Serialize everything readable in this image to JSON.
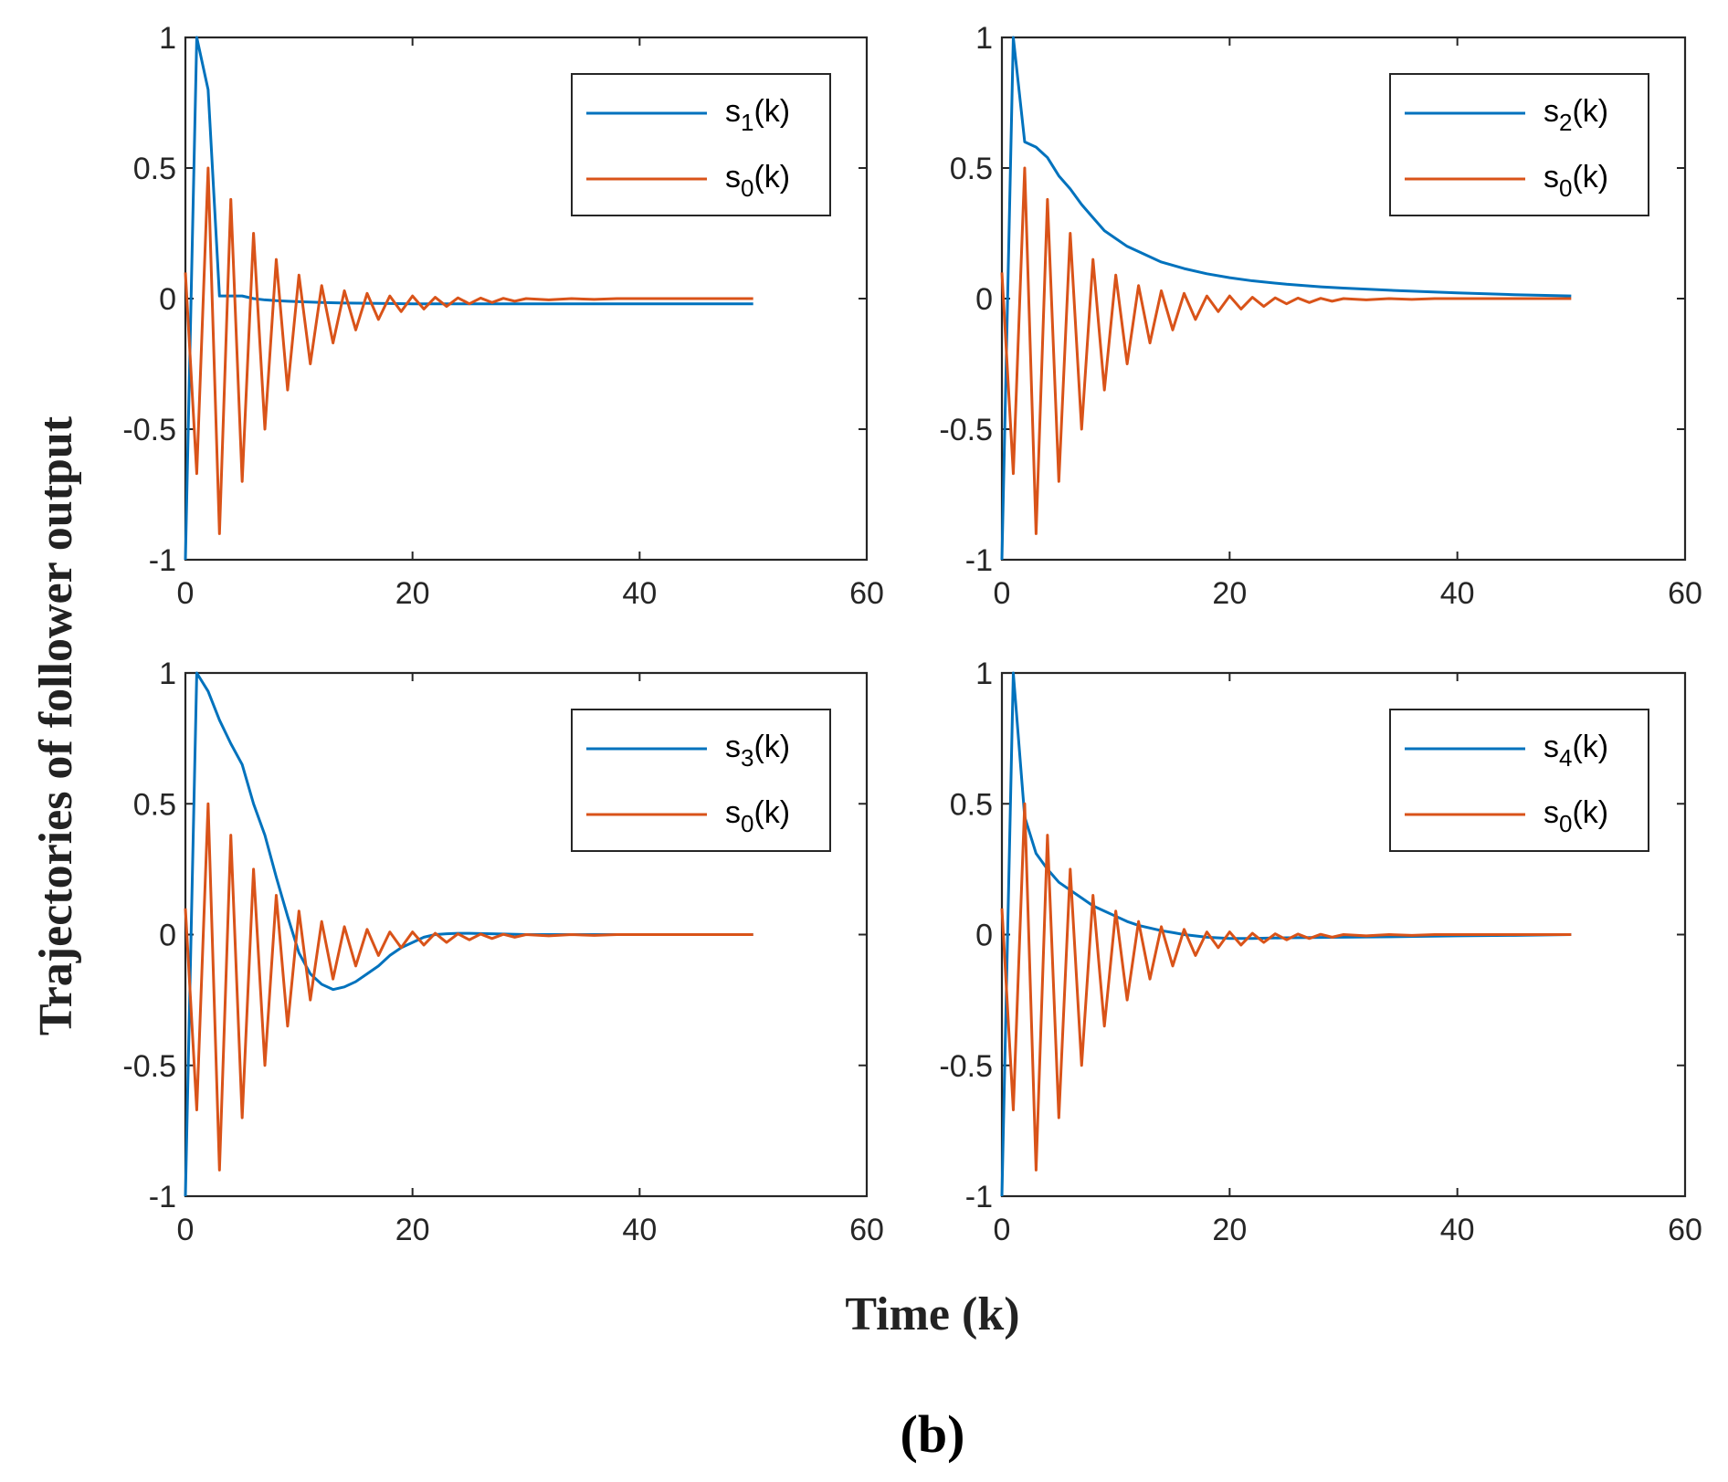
{
  "figure": {
    "ylabel": "Trajectories of follower output",
    "xlabel": "Time (k)",
    "panel_label": "(b)",
    "colors": {
      "s_follower": "#0072BD",
      "s_leader": "#D95319",
      "axes": "#262626"
    }
  },
  "chart_data": [
    {
      "type": "line",
      "xlim": [
        0,
        60
      ],
      "ylim": [
        -1,
        1
      ],
      "xticks": [
        0,
        20,
        40,
        60
      ],
      "xtick_labels": [
        "0",
        "20",
        "40",
        "60"
      ],
      "yticks": [
        -1,
        -0.5,
        0,
        0.5,
        1
      ],
      "ytick_labels": [
        "-1",
        "-0.5",
        "0",
        "0.5",
        "1"
      ],
      "legend_location": "top-right",
      "series": [
        {
          "name": "s1(k)",
          "label_base": "s",
          "label_sub": "1",
          "label_tail": "(k)",
          "color": "#0072BD",
          "x": [
            0,
            1,
            2,
            3,
            4,
            5,
            6,
            7,
            8,
            9,
            10,
            12,
            14,
            16,
            18,
            20,
            25,
            30,
            35,
            40,
            45,
            50
          ],
          "y": [
            -1,
            1,
            0.8,
            0.01,
            0.01,
            0.01,
            0.0,
            -0.005,
            -0.008,
            -0.01,
            -0.012,
            -0.015,
            -0.017,
            -0.018,
            -0.019,
            -0.02,
            -0.02,
            -0.02,
            -0.02,
            -0.02,
            -0.02,
            -0.02
          ]
        },
        {
          "name": "s0(k)",
          "label_base": "s",
          "label_sub": "0",
          "label_tail": "(k)",
          "color": "#D95319",
          "x": [
            0,
            1,
            2,
            3,
            4,
            5,
            6,
            7,
            8,
            9,
            10,
            11,
            12,
            13,
            14,
            15,
            16,
            17,
            18,
            19,
            20,
            21,
            22,
            23,
            24,
            25,
            26,
            27,
            28,
            29,
            30,
            32,
            34,
            36,
            38,
            40,
            45,
            50
          ],
          "y": [
            0.1,
            -0.67,
            0.5,
            -0.9,
            0.38,
            -0.7,
            0.25,
            -0.5,
            0.15,
            -0.35,
            0.09,
            -0.25,
            0.05,
            -0.17,
            0.03,
            -0.12,
            0.02,
            -0.08,
            0.01,
            -0.05,
            0.01,
            -0.04,
            0.005,
            -0.03,
            0.003,
            -0.02,
            0.002,
            -0.015,
            0.001,
            -0.01,
            0.0,
            -0.005,
            0.0,
            -0.003,
            0.0,
            0.0,
            0.0,
            0.0
          ]
        }
      ]
    },
    {
      "type": "line",
      "xlim": [
        0,
        60
      ],
      "ylim": [
        -1,
        1
      ],
      "xticks": [
        0,
        20,
        40,
        60
      ],
      "xtick_labels": [
        "0",
        "20",
        "40",
        "60"
      ],
      "yticks": [
        -1,
        -0.5,
        0,
        0.5,
        1
      ],
      "ytick_labels": [
        "-1",
        "-0.5",
        "0",
        "0.5",
        "1"
      ],
      "legend_location": "top-right",
      "series": [
        {
          "name": "s2(k)",
          "label_base": "s",
          "label_sub": "2",
          "label_tail": "(k)",
          "color": "#0072BD",
          "x": [
            0,
            1,
            2,
            3,
            4,
            5,
            6,
            7,
            8,
            9,
            10,
            11,
            12,
            14,
            16,
            18,
            20,
            22,
            25,
            28,
            30,
            35,
            40,
            45,
            50
          ],
          "y": [
            -1,
            1,
            0.6,
            0.58,
            0.54,
            0.47,
            0.42,
            0.36,
            0.31,
            0.26,
            0.23,
            0.2,
            0.18,
            0.14,
            0.115,
            0.095,
            0.08,
            0.068,
            0.055,
            0.045,
            0.04,
            0.03,
            0.022,
            0.015,
            0.01
          ]
        },
        {
          "name": "s0(k)",
          "label_base": "s",
          "label_sub": "0",
          "label_tail": "(k)",
          "color": "#D95319",
          "x": [
            0,
            1,
            2,
            3,
            4,
            5,
            6,
            7,
            8,
            9,
            10,
            11,
            12,
            13,
            14,
            15,
            16,
            17,
            18,
            19,
            20,
            21,
            22,
            23,
            24,
            25,
            26,
            27,
            28,
            29,
            30,
            32,
            34,
            36,
            38,
            40,
            45,
            50
          ],
          "y": [
            0.1,
            -0.67,
            0.5,
            -0.9,
            0.38,
            -0.7,
            0.25,
            -0.5,
            0.15,
            -0.35,
            0.09,
            -0.25,
            0.05,
            -0.17,
            0.03,
            -0.12,
            0.02,
            -0.08,
            0.01,
            -0.05,
            0.01,
            -0.04,
            0.005,
            -0.03,
            0.003,
            -0.02,
            0.002,
            -0.015,
            0.001,
            -0.01,
            0.0,
            -0.005,
            0.0,
            -0.003,
            0.0,
            0.0,
            0.0,
            0.0
          ]
        }
      ]
    },
    {
      "type": "line",
      "xlim": [
        0,
        60
      ],
      "ylim": [
        -1,
        1
      ],
      "xticks": [
        0,
        20,
        40,
        60
      ],
      "xtick_labels": [
        "0",
        "20",
        "40",
        "60"
      ],
      "yticks": [
        -1,
        -0.5,
        0,
        0.5,
        1
      ],
      "ytick_labels": [
        "-1",
        "-0.5",
        "0",
        "0.5",
        "1"
      ],
      "legend_location": "top-right",
      "series": [
        {
          "name": "s3(k)",
          "label_base": "s",
          "label_sub": "3",
          "label_tail": "(k)",
          "color": "#0072BD",
          "x": [
            0,
            1,
            2,
            3,
            4,
            5,
            6,
            7,
            8,
            9,
            10,
            11,
            12,
            13,
            14,
            15,
            16,
            17,
            18,
            19,
            20,
            21,
            22,
            23,
            24,
            25,
            26,
            28,
            30,
            35,
            40,
            45,
            50
          ],
          "y": [
            -1,
            1,
            0.93,
            0.82,
            0.73,
            0.65,
            0.5,
            0.38,
            0.22,
            0.07,
            -0.07,
            -0.15,
            -0.19,
            -0.21,
            -0.2,
            -0.18,
            -0.15,
            -0.12,
            -0.08,
            -0.05,
            -0.03,
            -0.01,
            0.0,
            0.003,
            0.005,
            0.005,
            0.004,
            0.002,
            0.0,
            0.0,
            0.0,
            0.0,
            0.0
          ]
        },
        {
          "name": "s0(k)",
          "label_base": "s",
          "label_sub": "0",
          "label_tail": "(k)",
          "color": "#D95319",
          "x": [
            0,
            1,
            2,
            3,
            4,
            5,
            6,
            7,
            8,
            9,
            10,
            11,
            12,
            13,
            14,
            15,
            16,
            17,
            18,
            19,
            20,
            21,
            22,
            23,
            24,
            25,
            26,
            27,
            28,
            29,
            30,
            32,
            34,
            36,
            38,
            40,
            45,
            50
          ],
          "y": [
            0.1,
            -0.67,
            0.5,
            -0.9,
            0.38,
            -0.7,
            0.25,
            -0.5,
            0.15,
            -0.35,
            0.09,
            -0.25,
            0.05,
            -0.17,
            0.03,
            -0.12,
            0.02,
            -0.08,
            0.01,
            -0.05,
            0.01,
            -0.04,
            0.005,
            -0.03,
            0.003,
            -0.02,
            0.002,
            -0.015,
            0.001,
            -0.01,
            0.0,
            -0.005,
            0.0,
            -0.003,
            0.0,
            0.0,
            0.0,
            0.0
          ]
        }
      ]
    },
    {
      "type": "line",
      "xlim": [
        0,
        60
      ],
      "ylim": [
        -1,
        1
      ],
      "xticks": [
        0,
        20,
        40,
        60
      ],
      "xtick_labels": [
        "0",
        "20",
        "40",
        "60"
      ],
      "yticks": [
        -1,
        -0.5,
        0,
        0.5,
        1
      ],
      "ytick_labels": [
        "-1",
        "-0.5",
        "0",
        "0.5",
        "1"
      ],
      "legend_location": "top-right",
      "series": [
        {
          "name": "s4(k)",
          "label_base": "s",
          "label_sub": "4",
          "label_tail": "(k)",
          "color": "#0072BD",
          "x": [
            0,
            1,
            2,
            3,
            4,
            5,
            6,
            7,
            8,
            9,
            10,
            11,
            12,
            13,
            14,
            15,
            16,
            18,
            20,
            22,
            25,
            30,
            35,
            40,
            45,
            50
          ],
          "y": [
            -1,
            1,
            0.45,
            0.31,
            0.25,
            0.2,
            0.17,
            0.14,
            0.11,
            0.09,
            0.07,
            0.05,
            0.035,
            0.025,
            0.015,
            0.008,
            0.0,
            -0.01,
            -0.015,
            -0.015,
            -0.012,
            -0.01,
            -0.008,
            -0.005,
            -0.003,
            0.0
          ]
        },
        {
          "name": "s0(k)",
          "label_base": "s",
          "label_sub": "0",
          "label_tail": "(k)",
          "color": "#D95319",
          "x": [
            0,
            1,
            2,
            3,
            4,
            5,
            6,
            7,
            8,
            9,
            10,
            11,
            12,
            13,
            14,
            15,
            16,
            17,
            18,
            19,
            20,
            21,
            22,
            23,
            24,
            25,
            26,
            27,
            28,
            29,
            30,
            32,
            34,
            36,
            38,
            40,
            45,
            50
          ],
          "y": [
            0.1,
            -0.67,
            0.5,
            -0.9,
            0.38,
            -0.7,
            0.25,
            -0.5,
            0.15,
            -0.35,
            0.09,
            -0.25,
            0.05,
            -0.17,
            0.03,
            -0.12,
            0.02,
            -0.08,
            0.01,
            -0.05,
            0.01,
            -0.04,
            0.005,
            -0.03,
            0.003,
            -0.02,
            0.002,
            -0.015,
            0.001,
            -0.01,
            0.0,
            -0.005,
            0.0,
            -0.003,
            0.0,
            0.0,
            0.0,
            0.0
          ]
        }
      ]
    }
  ]
}
